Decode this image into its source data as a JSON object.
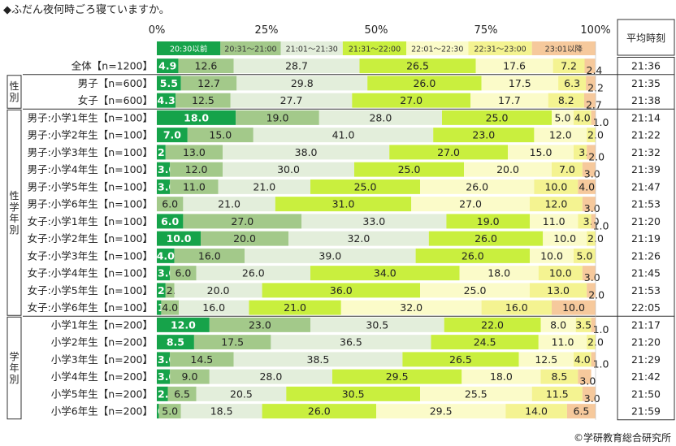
{
  "title": "◆ふだん夜何時ごろ寝ていますか。",
  "credit": "©学研教育総合研究所",
  "avg_header": "平均時刻",
  "chart_data": {
    "type": "bar",
    "stacked": true,
    "orientation": "horizontal",
    "percent_axis": {
      "min": 0,
      "max": 100,
      "ticks": [
        0,
        25,
        50,
        75,
        100
      ],
      "tick_labels": [
        "0%",
        "25%",
        "50%",
        "75%",
        "100%"
      ]
    },
    "series": [
      {
        "name": "20:30以前",
        "color": "#16a34a"
      },
      {
        "name": "20:31～21:00",
        "color": "#a3c98a"
      },
      {
        "name": "21:01～21:30",
        "color": "#e3eedb"
      },
      {
        "name": "21:31～22:00",
        "color": "#c9ef3e"
      },
      {
        "name": "22:01～22:30",
        "color": "#fbfbc9"
      },
      {
        "name": "22:31～23:00",
        "color": "#f4f391"
      },
      {
        "name": "23:01以降",
        "color": "#f6c99c"
      }
    ],
    "groups": [
      {
        "label": "",
        "rows": [
          {
            "label": "全体【n=1200】",
            "values": [
              4.9,
              12.6,
              28.7,
              26.5,
              17.6,
              7.2,
              2.4
            ],
            "avg": "21:36"
          }
        ]
      },
      {
        "label": "性別",
        "rows": [
          {
            "label": "男子【n=600】",
            "values": [
              5.5,
              12.7,
              29.8,
              26.0,
              17.5,
              6.3,
              2.2
            ],
            "avg": "21:35"
          },
          {
            "label": "女子【n=600】",
            "values": [
              4.3,
              12.5,
              27.7,
              27.0,
              17.7,
              8.2,
              2.7
            ],
            "avg": "21:38"
          }
        ]
      },
      {
        "label": "性学年別",
        "rows": [
          {
            "label": "男子:小学1年生【n=100】",
            "values": [
              18.0,
              19.0,
              28.0,
              25.0,
              5.0,
              4.0,
              1.0
            ],
            "avg": "21:14"
          },
          {
            "label": "男子:小学2年生【n=100】",
            "values": [
              7.0,
              15.0,
              41.0,
              23.0,
              12.0,
              2.0,
              0
            ],
            "avg": "21:22"
          },
          {
            "label": "男子:小学3年生【n=100】",
            "values": [
              2.0,
              13.0,
              38.0,
              27.0,
              15.0,
              3.0,
              2.0
            ],
            "avg": "21:32"
          },
          {
            "label": "男子:小学4年生【n=100】",
            "values": [
              3.0,
              12.0,
              30.0,
              25.0,
              20.0,
              7.0,
              3.0
            ],
            "avg": "21:39"
          },
          {
            "label": "男子:小学5年生【n=100】",
            "values": [
              3.0,
              11.0,
              21.0,
              25.0,
              26.0,
              10.0,
              4.0
            ],
            "avg": "21:47"
          },
          {
            "label": "男子:小学6年生【n=100】",
            "values": [
              0,
              6.0,
              21.0,
              31.0,
              27.0,
              12.0,
              3.0
            ],
            "avg": "21:53"
          },
          {
            "label": "女子:小学1年生【n=100】",
            "values": [
              6.0,
              27.0,
              33.0,
              19.0,
              11.0,
              3.0,
              1.0
            ],
            "avg": "21:20"
          },
          {
            "label": "女子:小学2年生【n=100】",
            "values": [
              10.0,
              20.0,
              32.0,
              26.0,
              10.0,
              2.0,
              0
            ],
            "avg": "21:19"
          },
          {
            "label": "女子:小学3年生【n=100】",
            "values": [
              4.0,
              16.0,
              39.0,
              26.0,
              10.0,
              5.0,
              0
            ],
            "avg": "21:26"
          },
          {
            "label": "女子:小学4年生【n=100】",
            "values": [
              3.0,
              6.0,
              26.0,
              34.0,
              18.0,
              10.0,
              3.0
            ],
            "avg": "21:45"
          },
          {
            "label": "女子:小学5年生【n=100】",
            "values": [
              2.0,
              2.0,
              20.0,
              36.0,
              25.0,
              13.0,
              2.0
            ],
            "avg": "21:53"
          },
          {
            "label": "女子:小学6年生【n=100】",
            "values": [
              1.0,
              4.0,
              16.0,
              21.0,
              32.0,
              16.0,
              10.0
            ],
            "avg": "22:05"
          }
        ]
      },
      {
        "label": "学年別",
        "rows": [
          {
            "label": "小学1年生【n=200】",
            "values": [
              12.0,
              23.0,
              30.5,
              22.0,
              8.0,
              3.5,
              1.0
            ],
            "avg": "21:17"
          },
          {
            "label": "小学2年生【n=200】",
            "values": [
              8.5,
              17.5,
              36.5,
              24.5,
              11.0,
              2.0,
              0
            ],
            "avg": "21:20"
          },
          {
            "label": "小学3年生【n=200】",
            "values": [
              3.0,
              14.5,
              38.5,
              26.5,
              12.5,
              4.0,
              1.0
            ],
            "avg": "21:29"
          },
          {
            "label": "小学4年生【n=200】",
            "values": [
              3.0,
              9.0,
              28.0,
              29.5,
              18.0,
              8.5,
              3.0
            ],
            "avg": "21:42"
          },
          {
            "label": "小学5年生【n=200】",
            "values": [
              2.5,
              6.5,
              20.5,
              30.5,
              25.5,
              11.5,
              3.0
            ],
            "avg": "21:50"
          },
          {
            "label": "小学6年生【n=200】",
            "values": [
              0.5,
              5.0,
              18.5,
              26.0,
              29.5,
              14.0,
              6.5
            ],
            "avg": "21:59"
          }
        ]
      }
    ]
  }
}
